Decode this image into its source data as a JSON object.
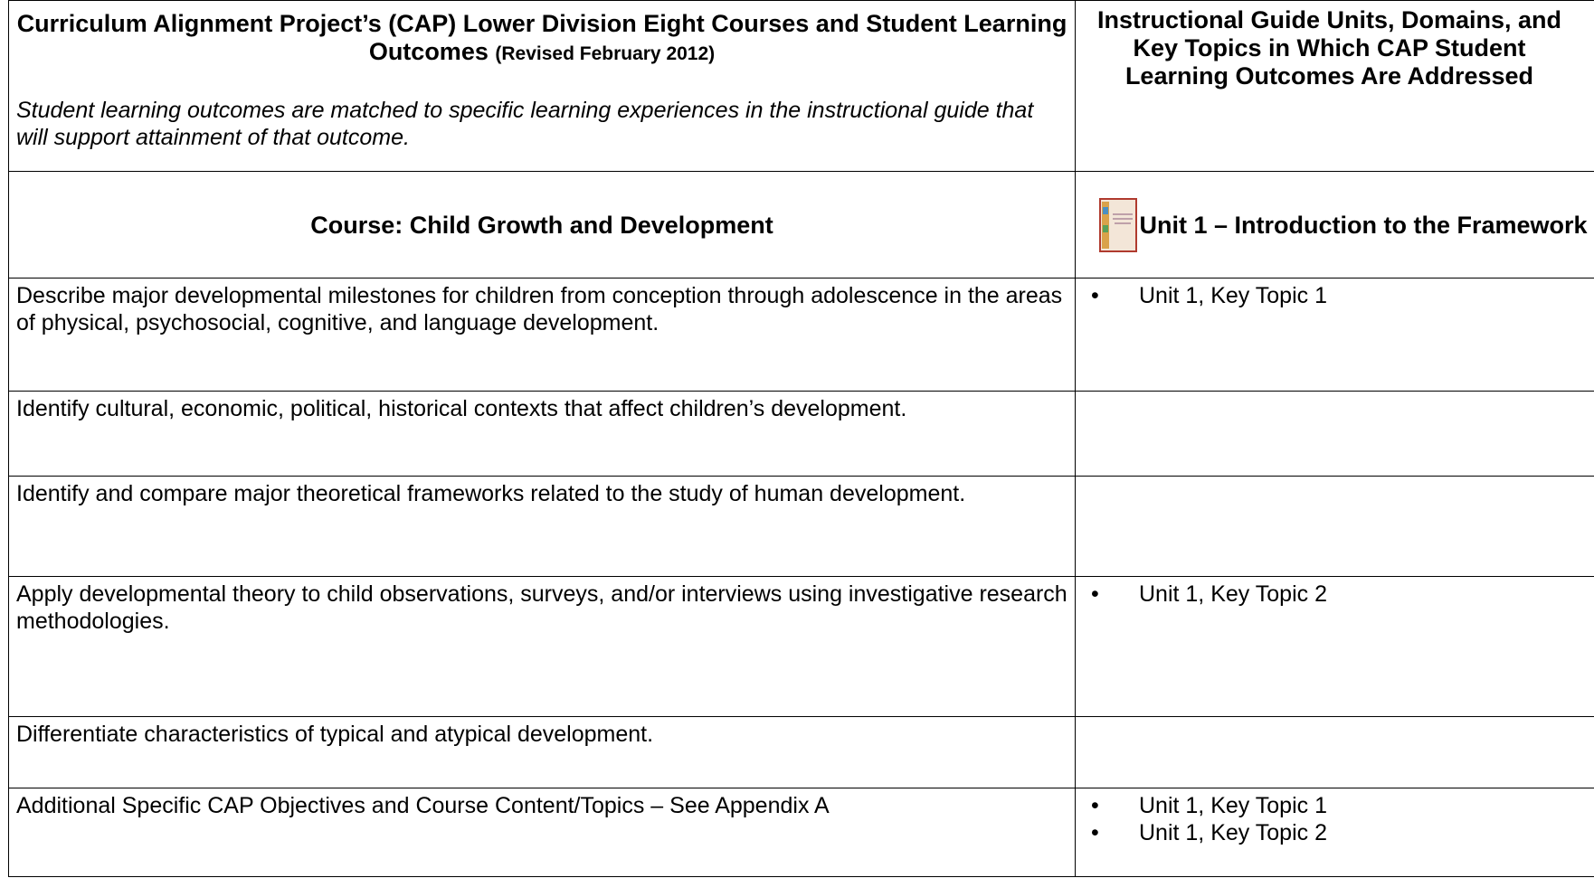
{
  "header": {
    "left_title": "Curriculum Alignment Project’s (CAP) Lower Division Eight Courses and Student Learning Outcomes",
    "left_revised": "(Revised February 2012)",
    "left_note": "Student learning outcomes are matched to specific learning experiences in the instructional guide that will support attainment of that outcome.",
    "right_title": "Instructional Guide Units, Domains, and Key Topics in Which CAP Student Learning Outcomes Are Addressed"
  },
  "course": {
    "name": "Course:  Child Growth and Development",
    "unit": "Unit 1 – Introduction to the Framework"
  },
  "rows": [
    {
      "outcome": "Describe major developmental milestones for children from conception through adolescence in the areas of physical, psychosocial, cognitive, and language development.",
      "topics": [
        "Unit 1, Key Topic 1"
      ]
    },
    {
      "outcome": "Identify cultural, economic, political, historical contexts that affect children’s development.",
      "topics": []
    },
    {
      "outcome": "Identify and compare major theoretical frameworks related to the study of human development.",
      "topics": []
    },
    {
      "outcome": "Apply developmental theory to child observations, surveys, and/or interviews using investigative research methodologies.",
      "topics": [
        "Unit 1, Key Topic 2"
      ]
    },
    {
      "outcome": "Differentiate characteristics of typical and atypical development.",
      "topics": []
    },
    {
      "outcome": "Additional Specific CAP Objectives and Course Content/Topics – See Appendix A",
      "topics": [
        "Unit 1, Key Topic 1",
        "Unit 1, Key Topic 2"
      ]
    }
  ]
}
